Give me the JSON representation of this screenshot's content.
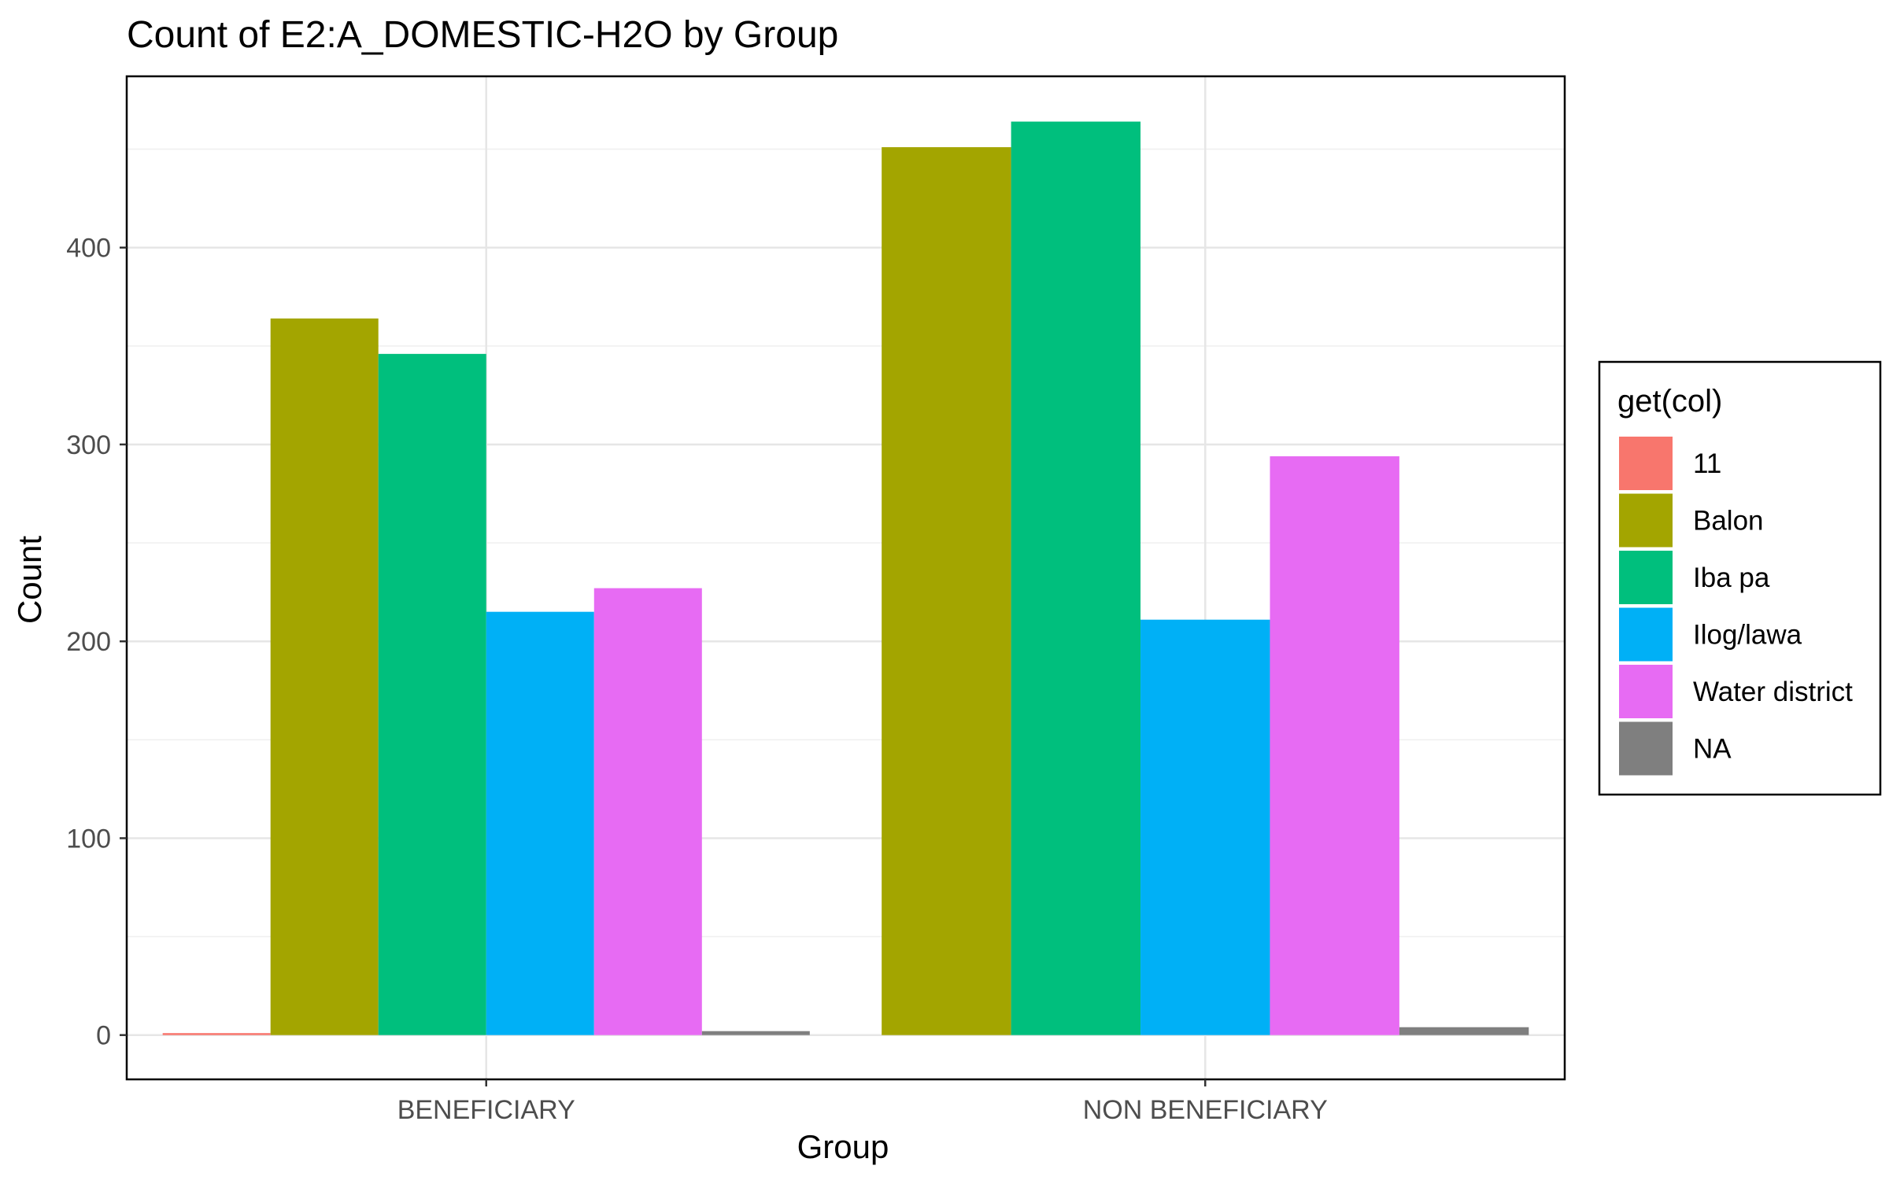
{
  "chart_data": {
    "type": "bar",
    "title": "Count of E2:A_DOMESTIC-H2O by Group",
    "xlabel": "Group",
    "ylabel": "Count",
    "categories": [
      "BENEFICIARY",
      "NON BENEFICIARY"
    ],
    "ylim": [
      -22.5,
      487
    ],
    "yticks": [
      0,
      100,
      200,
      300,
      400
    ],
    "grid": true,
    "legend": {
      "title": "get(col)",
      "placement": "right",
      "entries": [
        "11",
        "Balon",
        "Iba pa",
        "Ilog/lawa",
        "Water district",
        "NA"
      ]
    },
    "series": [
      {
        "name": "11",
        "color": "#F8766D",
        "values": [
          1,
          null
        ]
      },
      {
        "name": "Balon",
        "color": "#A3A500",
        "values": [
          364,
          451
        ]
      },
      {
        "name": "Iba pa",
        "color": "#00BF7D",
        "values": [
          346,
          464
        ]
      },
      {
        "name": "Ilog/lawa",
        "color": "#00B0F6",
        "values": [
          215,
          211
        ]
      },
      {
        "name": "Water district",
        "color": "#E76BF3",
        "values": [
          227,
          294
        ]
      },
      {
        "name": "NA",
        "color": "#7F7F7F",
        "values": [
          2,
          4
        ]
      }
    ]
  }
}
